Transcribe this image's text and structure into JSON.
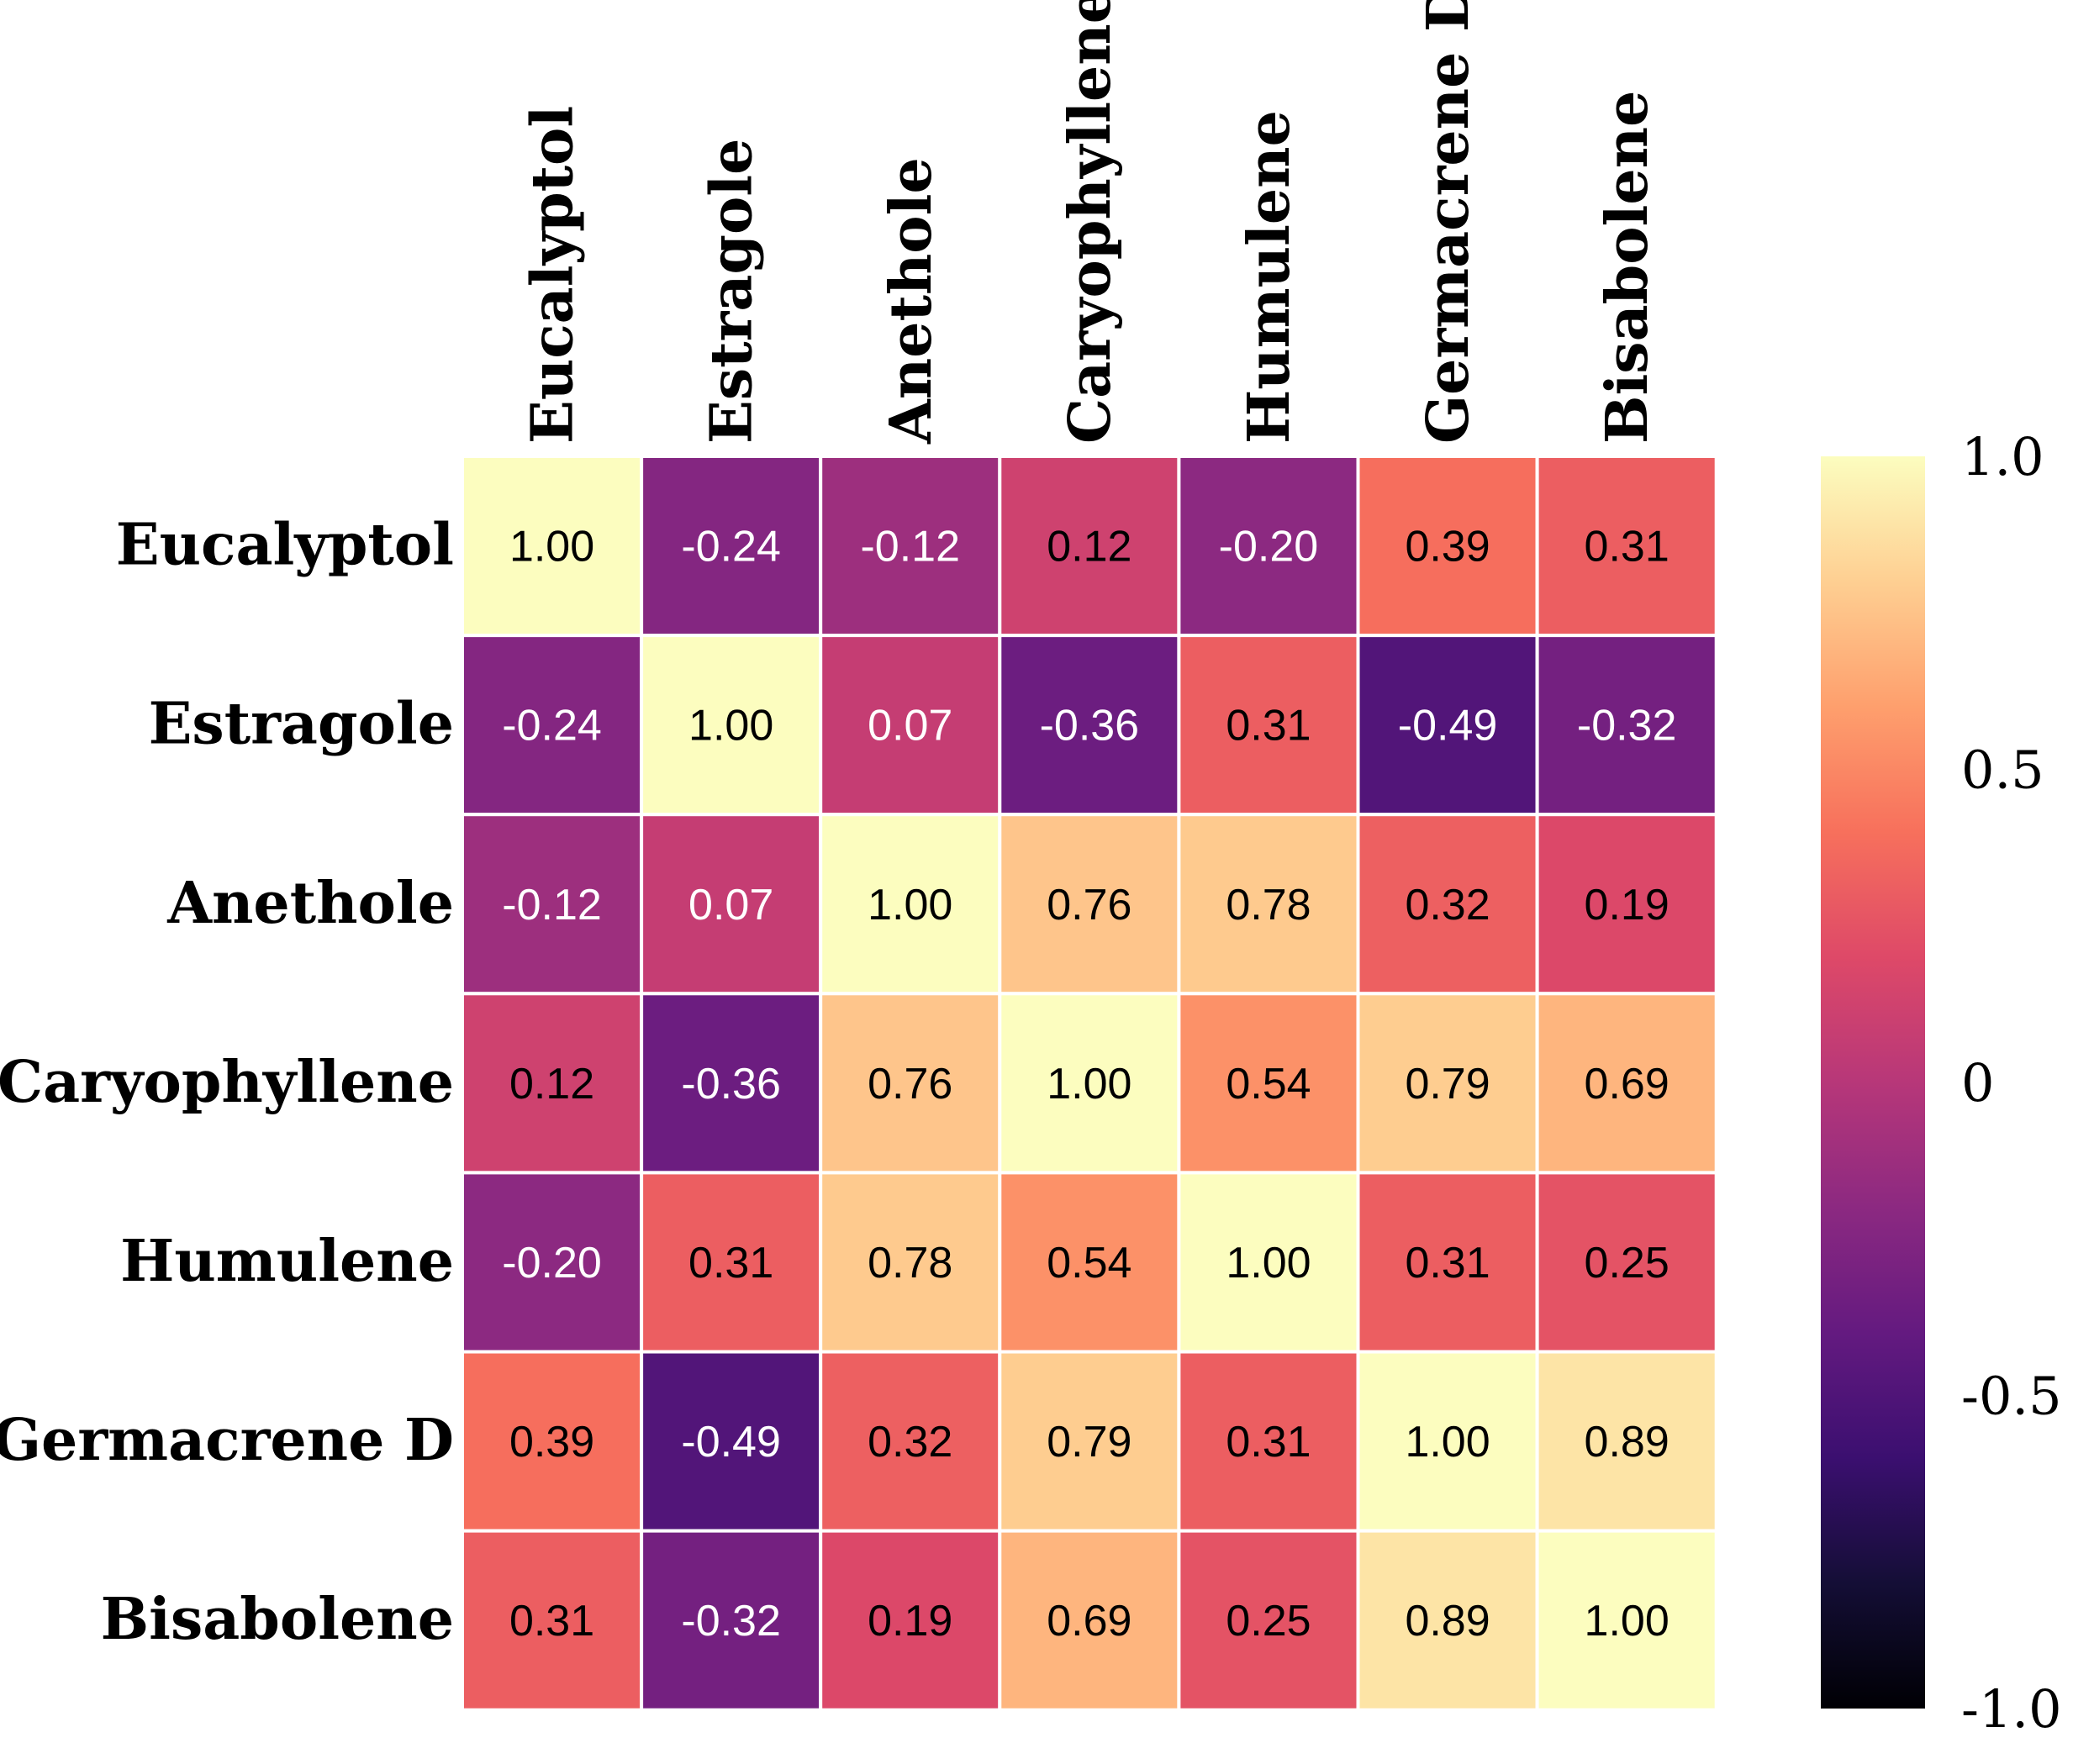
{
  "chart_data": {
    "type": "heatmap",
    "title": "",
    "xlabel": "",
    "ylabel": "",
    "labels": [
      "Eucalyptol",
      "Estragole",
      "Anethole",
      "Caryophyllene",
      "Humulene",
      "Germacrene D",
      "Bisabolene"
    ],
    "matrix": [
      [
        1.0,
        -0.24,
        -0.12,
        0.12,
        -0.2,
        0.39,
        0.31
      ],
      [
        -0.24,
        1.0,
        0.07,
        -0.36,
        0.31,
        -0.49,
        -0.32
      ],
      [
        -0.12,
        0.07,
        1.0,
        0.76,
        0.78,
        0.32,
        0.19
      ],
      [
        0.12,
        -0.36,
        0.76,
        1.0,
        0.54,
        0.79,
        0.69
      ],
      [
        -0.2,
        0.31,
        0.78,
        0.54,
        1.0,
        0.31,
        0.25
      ],
      [
        0.39,
        -0.49,
        0.32,
        0.79,
        0.31,
        1.0,
        0.89
      ],
      [
        0.31,
        -0.32,
        0.19,
        0.69,
        0.25,
        0.89,
        1.0
      ]
    ],
    "value_format": "0.00",
    "colormap": "magma",
    "vmin": -1.0,
    "vmax": 1.0,
    "colorbar": {
      "ticks": [
        1.0,
        0.5,
        0,
        -0.5,
        -1.0
      ],
      "tick_labels": [
        "1.0",
        "0.5",
        "0",
        "-0.5",
        "-1.0"
      ],
      "placement": "right"
    },
    "colors": {
      "magma_stops": [
        "#000004",
        "#140e36",
        "#3b0f70",
        "#641a80",
        "#8c2981",
        "#b73779",
        "#de4968",
        "#f7705c",
        "#fe9f6d",
        "#fecf92",
        "#fcfdbf"
      ],
      "cell_border": "#ffffff",
      "dark_text": "#000000",
      "light_text": "#ffffff"
    }
  }
}
